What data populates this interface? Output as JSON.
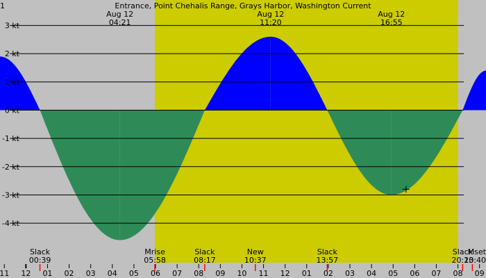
{
  "chart_data": {
    "type": "area",
    "title": "Entrance, Point Chehalis Range, Grays Harbor, Washington Current",
    "title_prefix": "1",
    "colors": {
      "night_background": "#c0c0c0",
      "day_background": "#cccc00",
      "flood": "#0000ff",
      "ebb": "#2e8b57",
      "gridline": "#000000",
      "marker": "#ff0000"
    },
    "y_unit": "kt",
    "y_ticks": [
      {
        "value": 3,
        "label": "3 kt"
      },
      {
        "value": 2,
        "label": "2 kt"
      },
      {
        "value": 1,
        "label": "1 kt"
      },
      {
        "value": 0,
        "label": "0 kt"
      },
      {
        "value": -1,
        "label": "-1 kt"
      },
      {
        "value": -2,
        "label": "-2 kt"
      },
      {
        "value": -3,
        "label": "-3 kt"
      },
      {
        "value": -4,
        "label": "-4 kt"
      }
    ],
    "ylim": [
      -5.4,
      3.9
    ],
    "xlim_hours": [
      -1.2,
      21.3
    ],
    "daylight_hours": [
      5.97,
      20.0
    ],
    "events_top": [
      {
        "date": "Aug 12",
        "time": "04:21",
        "hour": 4.35
      },
      {
        "date": "Aug 12",
        "time": "11:20",
        "hour": 11.33
      },
      {
        "date": "Aug 12",
        "time": "16:55",
        "hour": 16.92
      }
    ],
    "events_bottom": [
      {
        "label": "Slack",
        "time": "00:39",
        "hour": 0.65
      },
      {
        "label": "Mrise",
        "time": "05:58",
        "hour": 5.97
      },
      {
        "label": "Slack",
        "time": "08:17",
        "hour": 8.28
      },
      {
        "label": "New",
        "time": "10:37",
        "hour": 10.62
      },
      {
        "label": "Slack",
        "time": "13:57",
        "hour": 13.95
      },
      {
        "label": "Slack",
        "time": "20:13",
        "hour": 20.22
      },
      {
        "label": "Mset",
        "time": "20:40",
        "hour": 20.67
      }
    ],
    "hour_ticks": [
      {
        "label": "11",
        "hour": -1
      },
      {
        "label": "12",
        "hour": 0
      },
      {
        "label": "01",
        "hour": 1
      },
      {
        "label": "02",
        "hour": 2
      },
      {
        "label": "03",
        "hour": 3
      },
      {
        "label": "04",
        "hour": 4
      },
      {
        "label": "05",
        "hour": 5
      },
      {
        "label": "06",
        "hour": 6
      },
      {
        "label": "07",
        "hour": 7
      },
      {
        "label": "08",
        "hour": 8
      },
      {
        "label": "09",
        "hour": 9
      },
      {
        "label": "10",
        "hour": 10
      },
      {
        "label": "11",
        "hour": 11
      },
      {
        "label": "12",
        "hour": 12
      },
      {
        "label": "01",
        "hour": 13
      },
      {
        "label": "02",
        "hour": 14
      },
      {
        "label": "03",
        "hour": 15
      },
      {
        "label": "04",
        "hour": 16
      },
      {
        "label": "05",
        "hour": 17
      },
      {
        "label": "06",
        "hour": 18
      },
      {
        "label": "07",
        "hour": 19
      },
      {
        "label": "08",
        "hour": 20
      },
      {
        "label": "09",
        "hour": 21
      }
    ],
    "current_extrema": [
      {
        "hour": -1.2,
        "knots": 1.9
      },
      {
        "hour": 0.65,
        "knots": 0
      },
      {
        "hour": 4.35,
        "knots": -4.6
      },
      {
        "hour": 8.28,
        "knots": 0
      },
      {
        "hour": 11.33,
        "knots": 2.6
      },
      {
        "hour": 13.95,
        "knots": 0
      },
      {
        "hour": 16.92,
        "knots": -3.0
      },
      {
        "hour": 20.22,
        "knots": 0
      },
      {
        "hour": 21.3,
        "knots": 1.4
      }
    ],
    "current_time_marker": {
      "hour": 17.6,
      "knots": -2.8
    }
  }
}
